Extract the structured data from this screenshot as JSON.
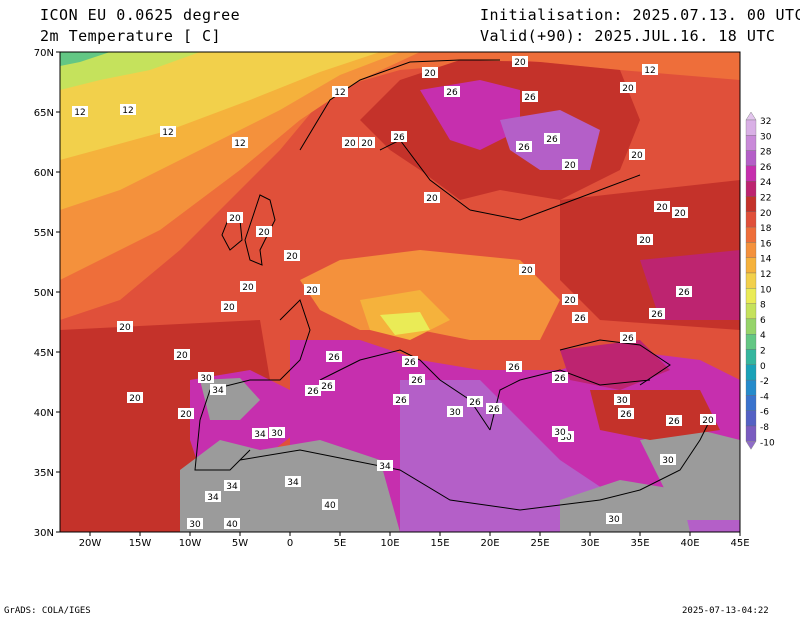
{
  "header": {
    "model": "ICON EU 0.0625 degree",
    "variable": "2m Temperature [ C]",
    "init": "Initialisation: 2025.07.13. 00 UTC",
    "valid": "Valid(+90): 2025.JUL.16. 18 UTC"
  },
  "footer": {
    "left": "GrADS: COLA/IGES",
    "right": "2025-07-13-04:22"
  },
  "axes": {
    "lat_labels": [
      "70N",
      "65N",
      "60N",
      "55N",
      "50N",
      "45N",
      "40N",
      "35N",
      "30N"
    ],
    "lon_labels": [
      "20W",
      "15W",
      "10W",
      "5W",
      "0",
      "5E",
      "10E",
      "15E",
      "20E",
      "25E",
      "30E",
      "35E",
      "40E",
      "45E"
    ]
  },
  "colorbar": {
    "levels": [
      "32",
      "30",
      "28",
      "26",
      "24",
      "22",
      "20",
      "18",
      "16",
      "14",
      "12",
      "10",
      "8",
      "6",
      "4",
      "2",
      "0",
      "-2",
      "-4",
      "-6",
      "-8",
      "-10"
    ],
    "colors": [
      "#d9b0e6",
      "#c98ad9",
      "#b45fc8",
      "#c62fae",
      "#bd2470",
      "#c4322a",
      "#e0503a",
      "#ee6e3a",
      "#f4913c",
      "#f5b23c",
      "#f2d04b",
      "#eaeb56",
      "#c5e25c",
      "#96d46a",
      "#63c784",
      "#35b69e",
      "#1aa2b8",
      "#258bcb",
      "#3a73cd",
      "#5461c4",
      "#7a5cc0"
    ]
  },
  "contour_labels": [
    "12",
    "12",
    "12",
    "12",
    "12",
    "12",
    "20",
    "20",
    "20",
    "20",
    "20",
    "20",
    "20",
    "20",
    "20",
    "20",
    "20",
    "20",
    "20",
    "20",
    "20",
    "20",
    "20",
    "20",
    "20",
    "20",
    "20",
    "20",
    "20",
    "20",
    "26",
    "26",
    "26",
    "26",
    "26",
    "26",
    "26",
    "26",
    "26",
    "26",
    "26",
    "26",
    "26",
    "26",
    "26",
    "26",
    "26",
    "26",
    "26",
    "26",
    "26",
    "30",
    "30",
    "30",
    "30",
    "30",
    "30",
    "30",
    "30",
    "30",
    "34",
    "34",
    "34",
    "34",
    "34",
    "34",
    "40",
    "40"
  ]
}
